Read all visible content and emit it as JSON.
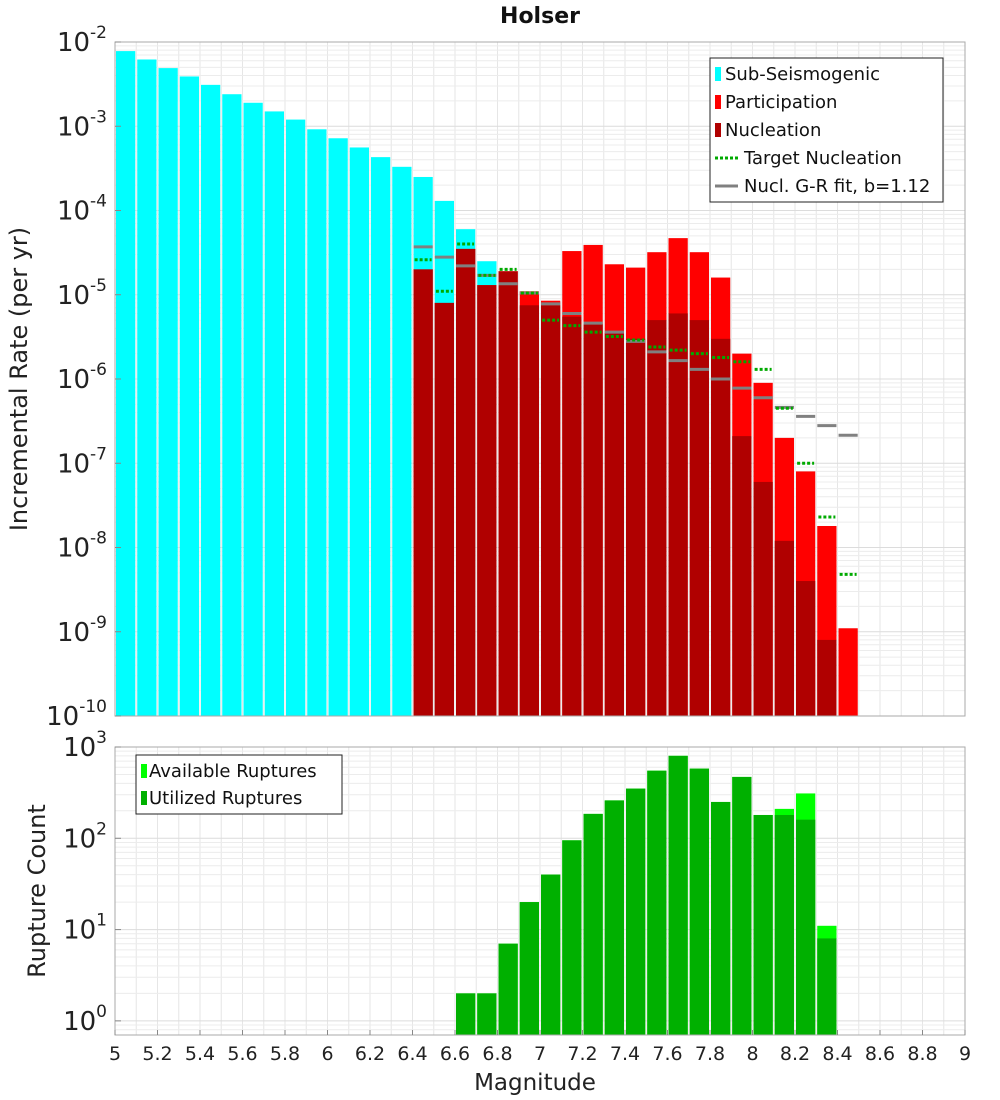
{
  "chart_data": [
    {
      "type": "bar",
      "title": "Holser",
      "ylabel": "Incremental Rate (per yr)",
      "xlabel": "",
      "xlim": [
        5,
        9
      ],
      "ylim": [
        1e-10,
        0.01
      ],
      "yscale": "log",
      "grid": true,
      "bar_width": 0.1,
      "legend": {
        "placement": "top-right",
        "entries": [
          {
            "label": "Sub-Seismogenic",
            "color": "#00ffff",
            "style": "bar"
          },
          {
            "label": "Participation",
            "color": "#ff0000",
            "style": "bar"
          },
          {
            "label": "Nucleation",
            "color": "#b00000",
            "style": "bar"
          },
          {
            "label": "Target Nucleation",
            "color": "#00aa00",
            "style": "dotted"
          },
          {
            "label": "Nucl. G-R fit, b=1.12",
            "color": "#808080",
            "style": "line"
          }
        ]
      },
      "series": [
        {
          "name": "Sub-Seismogenic",
          "color": "#00ffff",
          "x": [
            5.05,
            5.15,
            5.25,
            5.35,
            5.45,
            5.55,
            5.65,
            5.75,
            5.85,
            5.95,
            6.05,
            6.15,
            6.25,
            6.35,
            6.45,
            6.55,
            6.65,
            6.75
          ],
          "values": [
            0.0078,
            0.0062,
            0.0049,
            0.0039,
            0.0031,
            0.0024,
            0.0019,
            0.0015,
            0.0012,
            0.00092,
            0.00072,
            0.00056,
            0.00043,
            0.00033,
            0.00025,
            0.00013,
            6e-05,
            2.5e-05
          ]
        },
        {
          "name": "Participation",
          "color": "#ff0000",
          "x": [
            6.45,
            6.55,
            6.65,
            6.75,
            6.85,
            6.95,
            7.05,
            7.15,
            7.25,
            7.35,
            7.45,
            7.55,
            7.65,
            7.75,
            7.85,
            7.95,
            8.05,
            8.15,
            8.25,
            8.35,
            8.45
          ],
          "values": [
            2e-05,
            8e-06,
            3.5e-05,
            1.3e-05,
            1.9e-05,
            1.1e-05,
            8.5e-06,
            3.3e-05,
            3.9e-05,
            2.3e-05,
            2.1e-05,
            3.2e-05,
            4.7e-05,
            3.2e-05,
            1.6e-05,
            2e-06,
            9e-07,
            2e-07,
            8e-08,
            1.8e-08,
            1.1e-09
          ]
        },
        {
          "name": "Nucleation",
          "color": "#b00000",
          "x": [
            6.45,
            6.55,
            6.65,
            6.75,
            6.85,
            6.95,
            7.05,
            7.15,
            7.25,
            7.35,
            7.45,
            7.55,
            7.65,
            7.75,
            7.85,
            7.95,
            8.05,
            8.15,
            8.25,
            8.35
          ],
          "values": [
            2e-05,
            8e-06,
            3.5e-05,
            1.3e-05,
            1.9e-05,
            7.5e-06,
            7.5e-06,
            5.5e-06,
            4.5e-06,
            3.5e-06,
            3e-06,
            5e-06,
            6e-06,
            5e-06,
            3e-06,
            2.1e-07,
            6e-08,
            1.2e-08,
            4e-09,
            8e-10
          ]
        },
        {
          "name": "Target Nucleation",
          "color": "#00aa00",
          "x": [
            6.45,
            6.55,
            6.65,
            6.75,
            6.85,
            6.95,
            7.05,
            7.15,
            7.25,
            7.35,
            7.45,
            7.55,
            7.65,
            7.75,
            7.85,
            7.95,
            8.05,
            8.15,
            8.25,
            8.35,
            8.45
          ],
          "values": [
            2.6e-05,
            1.1e-05,
            4e-05,
            1.7e-05,
            2e-05,
            1.05e-05,
            5e-06,
            4.3e-06,
            3.6e-06,
            3.2e-06,
            2.9e-06,
            2.4e-06,
            2.2e-06,
            2e-06,
            1.8e-06,
            1.6e-06,
            1.3e-06,
            4.5e-07,
            1e-07,
            2.3e-08,
            4.8e-09
          ]
        },
        {
          "name": "Nucl. G-R fit, b=1.12",
          "color": "#808080",
          "x": [
            6.45,
            6.55,
            6.65,
            6.75,
            6.85,
            6.95,
            7.05,
            7.15,
            7.25,
            7.35,
            7.45,
            7.55,
            7.65,
            7.75,
            7.85,
            7.95,
            8.05,
            8.15,
            8.25,
            8.35,
            8.45
          ],
          "values": [
            3.7e-05,
            2.8e-05,
            2.2e-05,
            1.7e-05,
            1.35e-05,
            1.05e-05,
            7.8e-06,
            6e-06,
            4.6e-06,
            3.6e-06,
            2.8e-06,
            2.1e-06,
            1.65e-06,
            1.3e-06,
            1e-06,
            7.8e-07,
            6e-07,
            4.6e-07,
            3.6e-07,
            2.8e-07,
            2.15e-07
          ]
        }
      ]
    },
    {
      "type": "bar",
      "title": "",
      "ylabel": "Rupture Count",
      "xlabel": "Magnitude",
      "xlim": [
        5,
        9
      ],
      "ylim": [
        0.7,
        1000
      ],
      "yscale": "log",
      "grid": true,
      "bar_width": 0.1,
      "x_ticks": [
        "5",
        "5.2",
        "5.4",
        "5.6",
        "5.8",
        "6",
        "6.2",
        "6.4",
        "6.6",
        "6.8",
        "7",
        "7.2",
        "7.4",
        "7.6",
        "7.8",
        "8",
        "8.2",
        "8.4",
        "8.6",
        "8.8",
        "9"
      ],
      "legend": {
        "placement": "top-left",
        "entries": [
          {
            "label": "Available Ruptures",
            "color": "#00ff00",
            "style": "bar"
          },
          {
            "label": "Utilized Ruptures",
            "color": "#00b000",
            "style": "bar"
          }
        ]
      },
      "series": [
        {
          "name": "Available Ruptures",
          "color": "#00ff00",
          "x": [
            6.65,
            6.75,
            6.85,
            6.95,
            7.05,
            7.15,
            7.25,
            7.35,
            7.45,
            7.55,
            7.65,
            7.75,
            7.85,
            7.95,
            8.05,
            8.15,
            8.25,
            8.35
          ],
          "values": [
            2,
            2,
            7,
            20,
            40,
            95,
            185,
            260,
            350,
            550,
            800,
            580,
            250,
            470,
            180,
            210,
            310,
            11
          ]
        },
        {
          "name": "Utilized Ruptures",
          "color": "#00b000",
          "x": [
            6.65,
            6.75,
            6.85,
            6.95,
            7.05,
            7.15,
            7.25,
            7.35,
            7.45,
            7.55,
            7.65,
            7.75,
            7.85,
            7.95,
            8.05,
            8.15,
            8.25,
            8.35
          ],
          "values": [
            2,
            2,
            7,
            20,
            40,
            95,
            185,
            260,
            350,
            550,
            800,
            580,
            250,
            470,
            180,
            180,
            160,
            8
          ]
        }
      ]
    }
  ]
}
